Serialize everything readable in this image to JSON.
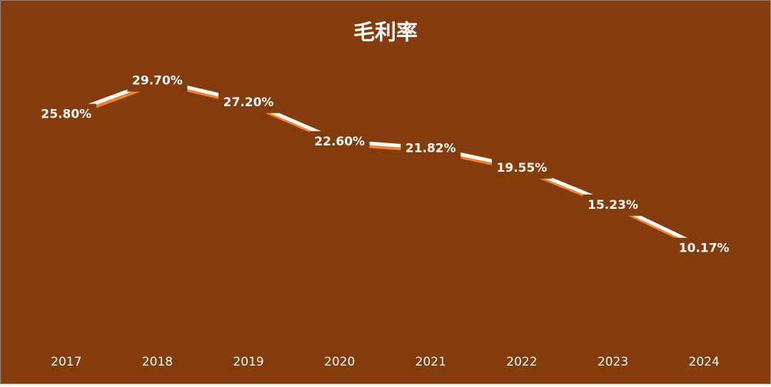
{
  "chart_data": {
    "type": "line",
    "title": "毛利率",
    "categories": [
      "2017",
      "2018",
      "2019",
      "2020",
      "2021",
      "2022",
      "2023",
      "2024"
    ],
    "series": [
      {
        "name": "毛利率",
        "color": "#ffffff",
        "values": [
          25.8,
          29.7,
          27.2,
          22.6,
          21.82,
          19.55,
          15.23,
          10.17
        ],
        "value_labels": [
          "25.80%",
          "29.70%",
          "27.20%",
          "22.60%",
          "21.82%",
          "19.55%",
          "15.23%",
          "10.17%"
        ]
      }
    ],
    "ylim": [
      0,
      32
    ],
    "drop_lines": true,
    "background": "#843c0c",
    "shadow_color": "#f4812f"
  }
}
